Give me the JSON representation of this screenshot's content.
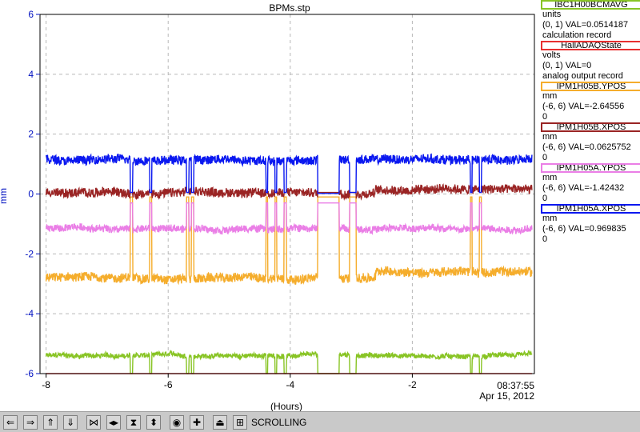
{
  "chart_data": {
    "type": "line",
    "title": "BPMs.stp",
    "xlabel": "(Hours)",
    "ylabel": "mm",
    "xlim": [
      -8.1,
      0
    ],
    "ylim": [
      -6,
      6
    ],
    "x_ticks": [
      -8,
      -6,
      -4,
      -2
    ],
    "y_ticks": [
      6,
      4,
      2,
      0,
      -2,
      -4,
      -6
    ],
    "grid": true,
    "legend_position": "right",
    "time_label": "08:37:55",
    "date_label": "Apr 15, 2012",
    "series": [
      {
        "name": "IBC1H00BCMAVG",
        "color": "#88c424",
        "units": "units",
        "range": "(0, 1)",
        "val": "VAL=0.0514187",
        "desc": "calculation record",
        "baseline": -5.4,
        "noise": 0.08
      },
      {
        "name": "HallADAQState",
        "color": "#e83030",
        "units": "volts",
        "range": "(0, 1)",
        "val": "VAL=0",
        "desc": "analog output record",
        "baseline": -6.0,
        "noise": 0.0
      },
      {
        "name": "IPM1H05B.YPOS",
        "color": "#f5ad2c",
        "units": "mm",
        "range": "(-6, 6)",
        "val": "VAL=-2.64556",
        "desc": "0",
        "baseline": -2.8,
        "noise": 0.15
      },
      {
        "name": "IPM1H05B.XPOS",
        "color": "#9a2424",
        "units": "mm",
        "range": "(-6, 6)",
        "val": "VAL=0.0625752",
        "desc": "0",
        "baseline": 0.05,
        "noise": 0.15
      },
      {
        "name": "IPM1H05A.YPOS",
        "color": "#ea7ee6",
        "units": "mm",
        "range": "(-6, 6)",
        "val": "VAL=-1.42432",
        "desc": "0",
        "baseline": -1.15,
        "noise": 0.12
      },
      {
        "name": "IPM1H05A.XPOS",
        "color": "#0a18f0",
        "units": "mm",
        "range": "(-6, 6)",
        "val": "VAL=0.969835",
        "desc": "0",
        "baseline": 1.15,
        "noise": 0.15
      }
    ],
    "beam_off_intervals": [
      [
        -6.62,
        -6.58
      ],
      [
        -6.3,
        -6.27
      ],
      [
        -5.7,
        -5.66
      ],
      [
        -5.62,
        -5.58
      ],
      [
        -4.4,
        -4.37
      ],
      [
        -4.25,
        -4.22
      ],
      [
        -4.1,
        -4.06
      ],
      [
        -3.55,
        -3.2
      ],
      [
        -3.03,
        -2.92
      ],
      [
        -1.05,
        -1.02
      ],
      [
        -0.9,
        -0.87
      ]
    ]
  },
  "toolbar": {
    "status": "SCROLLING",
    "buttons": [
      "pan-left",
      "pan-right",
      "pan-up",
      "pan-down",
      "zoom-in-x",
      "zoom-out-x",
      "zoom-in-y",
      "zoom-out-y",
      "autoscale",
      "add-trace",
      "print",
      "config"
    ]
  }
}
